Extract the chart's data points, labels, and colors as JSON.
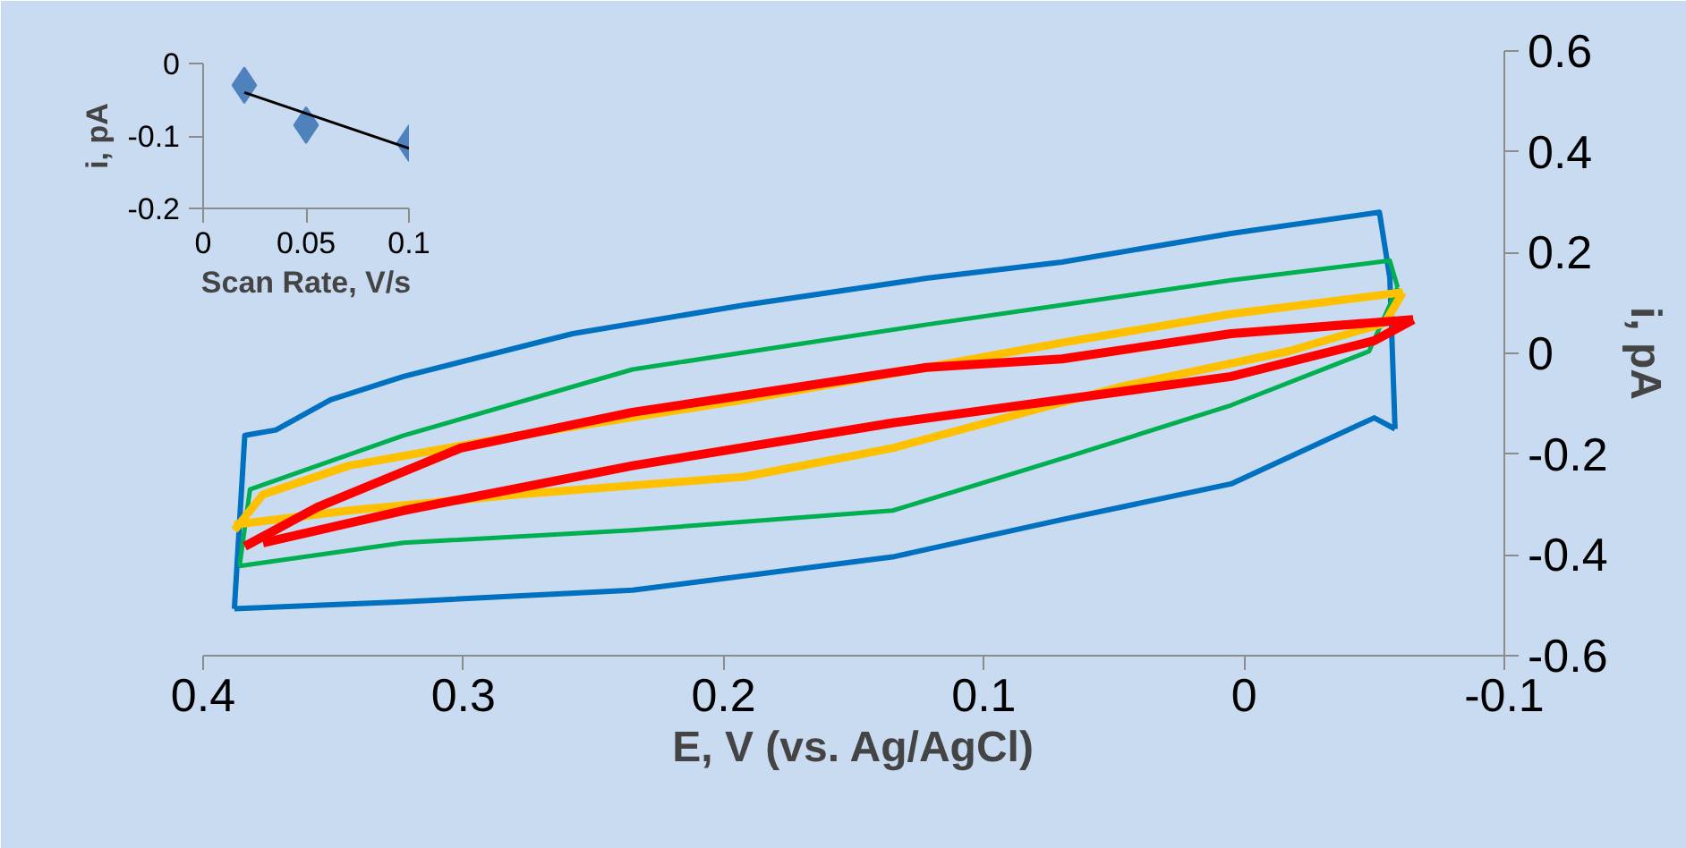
{
  "chart_data": [
    {
      "type": "line",
      "xlabel": "E, V (vs. Ag/AgCl)",
      "ylabel": "i, pA",
      "xlim": [
        0.4,
        -0.1
      ],
      "ylim": [
        -0.6,
        0.6
      ],
      "xticks": [
        0.4,
        0.3,
        0.2,
        0.1,
        0,
        -0.1
      ],
      "yticks": [
        -0.6,
        -0.4,
        -0.2,
        0,
        0.2,
        0.4,
        0.6
      ],
      "grid": false,
      "line_style": "solid",
      "series": [
        {
          "color": "#0070c0",
          "x": [
            0.388,
            0.384,
            0.372,
            0.351,
            0.323,
            0.258,
            0.192,
            0.122,
            0.07,
            0.005,
            -0.052,
            -0.056,
            -0.058
          ],
          "values": [
            -0.507,
            -0.163,
            -0.152,
            -0.092,
            -0.046,
            0.039,
            0.096,
            0.149,
            0.181,
            0.238,
            0.28,
            0.15,
            -0.15
          ]
        },
        {
          "color": "#0070c0",
          "x": [
            -0.058,
            -0.05,
            0.005,
            0.07,
            0.135,
            0.235,
            0.323,
            0.388
          ],
          "values": [
            -0.15,
            -0.128,
            -0.259,
            -0.33,
            -0.404,
            -0.47,
            -0.493,
            -0.507
          ]
        },
        {
          "color": "#00b050",
          "x": [
            0.386,
            0.382,
            0.323,
            0.235,
            0.122,
            0.07,
            0.005,
            -0.056,
            -0.059
          ],
          "values": [
            -0.422,
            -0.27,
            -0.163,
            -0.032,
            0.057,
            0.096,
            0.145,
            0.184,
            0.131
          ]
        },
        {
          "color": "#00b050",
          "x": [
            -0.059,
            -0.048,
            0.005,
            0.07,
            0.135,
            0.235,
            0.323,
            0.386
          ],
          "values": [
            0.131,
            0.004,
            -0.103,
            -0.209,
            -0.312,
            -0.351,
            -0.376,
            -0.422
          ]
        },
        {
          "color": "#ffc000",
          "x": [
            0.388,
            0.377,
            0.344,
            0.279,
            0.192,
            0.122,
            0.07,
            0.005,
            -0.061
          ],
          "values": [
            -0.351,
            -0.28,
            -0.223,
            -0.163,
            -0.092,
            -0.028,
            0.021,
            0.078,
            0.121
          ]
        },
        {
          "color": "#ffc000",
          "x": [
            -0.061,
            -0.054,
            -0.017,
            0.048,
            0.135,
            0.192,
            0.279,
            0.344,
            0.388
          ],
          "values": [
            0.121,
            0.06,
            0.004,
            -0.067,
            -0.188,
            -0.245,
            -0.28,
            -0.312,
            -0.34
          ]
        },
        {
          "color": "#ff0000",
          "x": [
            0.384,
            0.356,
            0.301,
            0.235,
            0.122,
            0.07,
            0.005,
            -0.065
          ],
          "values": [
            -0.383,
            -0.305,
            -0.188,
            -0.117,
            -0.028,
            -0.011,
            0.039,
            0.067
          ]
        },
        {
          "color": "#ff0000",
          "x": [
            -0.065,
            -0.05,
            0.005,
            0.135,
            0.235,
            0.323,
            0.377
          ],
          "values": [
            0.067,
            0.025,
            -0.046,
            -0.138,
            -0.223,
            -0.312,
            -0.376
          ]
        }
      ]
    },
    {
      "type": "scatter",
      "xlabel": "Scan Rate, V/s",
      "ylabel": "i, pA",
      "xlim": [
        0,
        0.1
      ],
      "ylim": [
        -0.2,
        0
      ],
      "xticks": [
        0,
        0.05,
        0.1
      ],
      "yticks": [
        -0.2,
        -0.1,
        0
      ],
      "grid": false,
      "series": [
        {
          "type": "scatter",
          "marker": "diamond",
          "color": "#4f81bd",
          "x": [
            0.02,
            0.05,
            0.1
          ],
          "values": [
            -0.03,
            -0.085,
            -0.11
          ]
        },
        {
          "type": "line",
          "color": "#000000",
          "x": [
            0.02,
            0.1
          ],
          "values": [
            -0.04,
            -0.117
          ]
        }
      ]
    }
  ]
}
